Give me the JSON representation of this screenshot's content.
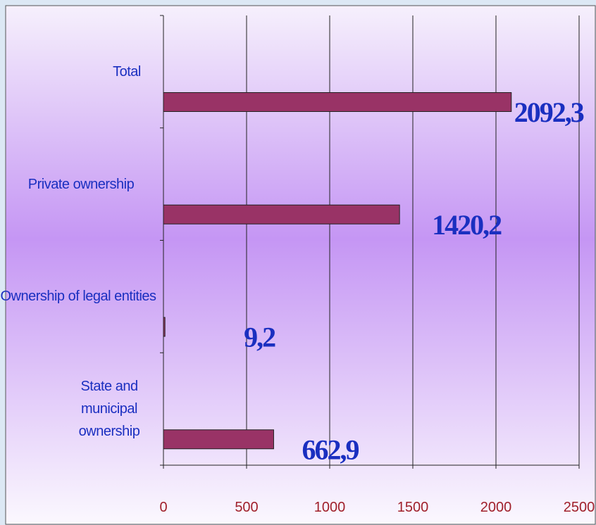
{
  "chart_data": {
    "type": "bar",
    "orientation": "horizontal",
    "categories": [
      "Total",
      "Private ownership",
      "Ownership of legal entities",
      "State and municipal ownership"
    ],
    "values": [
      2092.3,
      1420.2,
      9.2,
      662.9
    ],
    "value_labels": [
      "2092,3",
      "1420,2",
      "9,2",
      "662,9"
    ],
    "color": "#993366",
    "xlim": [
      0,
      2500
    ],
    "xticks": [
      0,
      500,
      1000,
      1500,
      2000,
      2500
    ],
    "grid": true
  }
}
